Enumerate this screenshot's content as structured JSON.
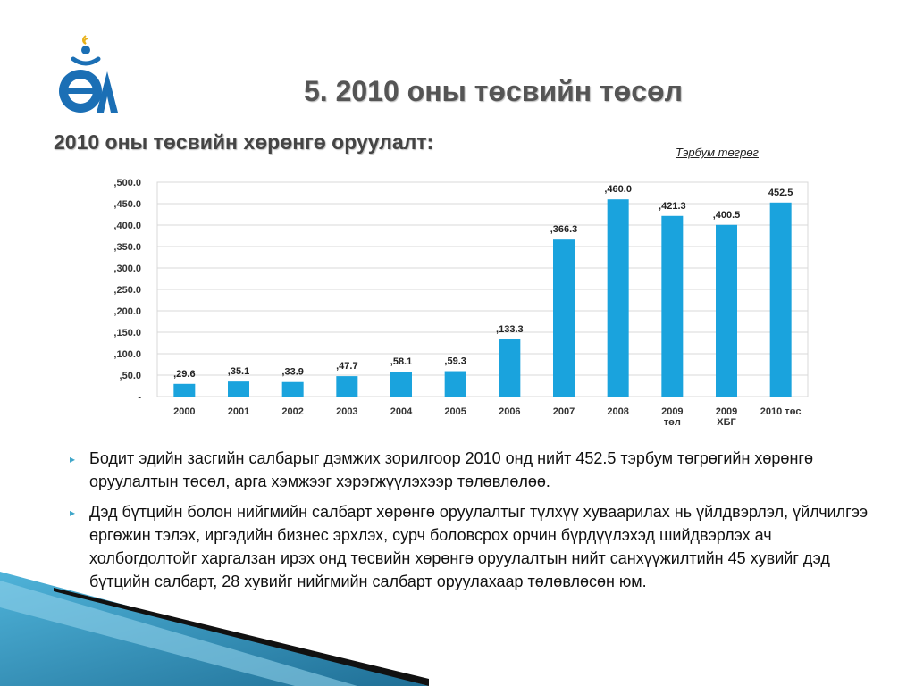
{
  "slide": {
    "title": "5. 2010 оны төсвийн төсөл",
    "subtitle": "2010 оны төсвийн хөрөнгө оруулалт:",
    "unit_note": "Тэрбум төгрөг"
  },
  "logo": {
    "icon": "logo-icon",
    "colors": [
      "#1b6fb5",
      "#e8b11a"
    ]
  },
  "chart_data": {
    "type": "bar",
    "categories": [
      [
        "2000"
      ],
      [
        "2001"
      ],
      [
        "2002"
      ],
      [
        "2003"
      ],
      [
        "2004"
      ],
      [
        "2005"
      ],
      [
        "2006"
      ],
      [
        "2007"
      ],
      [
        "2008"
      ],
      [
        "2009",
        "төл"
      ],
      [
        "2009",
        "ХБГ"
      ],
      [
        "2010 төс"
      ]
    ],
    "values": [
      29.6,
      35.1,
      33.9,
      47.7,
      58.1,
      59.3,
      133.3,
      366.3,
      460.0,
      421.3,
      400.5,
      452.5
    ],
    "data_labels": [
      ",29.6",
      ",35.1",
      ",33.9",
      ",47.7",
      ",58.1",
      ",59.3",
      ",133.3",
      ",366.3",
      ",460.0",
      ",421.3",
      ",400.5",
      "452.5"
    ],
    "y_tick_labels": [
      "-",
      ",50.0",
      ",100.0",
      ",150.0",
      ",200.0",
      ",250.0",
      ",300.0",
      ",350.0",
      ",400.0",
      ",450.0",
      ",500.0"
    ],
    "y_ticks": [
      0,
      50,
      100,
      150,
      200,
      250,
      300,
      350,
      400,
      450,
      500
    ],
    "ylim": [
      0,
      500
    ],
    "grid": true,
    "legend": "none",
    "bar_color": "#1aa3dd"
  },
  "bullets": [
    "Бодит эдийн засгийн салбарыг дэмжих зорилгоор 2010 онд нийт 452.5 тэрбум төгрөгийн хөрөнгө оруулалтын төсөл, арга хэмжээг хэрэгжүүлэхээр төлөвлөлөө.",
    "Дэд бүтцийн болон нийгмийн салбарт хөрөнгө оруулалтыг түлхүү хуваарилах нь үйлдвэрлэл, үйлчилгээ өргөжин тэлэх, иргэдийн бизнес эрхлэх, сурч боловсрох орчин бүрдүүлэхэд шийдвэрлэх ач холбогдолтойг харгалзан ирэх онд төсвийн хөрөнгө оруулалтын нийт санхүүжилтийн 45 хувийг дэд бүтцийн салбарт, 28 хувийг нийгмийн салбарт оруулахаар төлөвлөсөн юм."
  ],
  "bullet_marker": "▸",
  "decoration": {
    "colors": [
      "#1f6f96",
      "#4fb3d9",
      "#111111"
    ]
  }
}
